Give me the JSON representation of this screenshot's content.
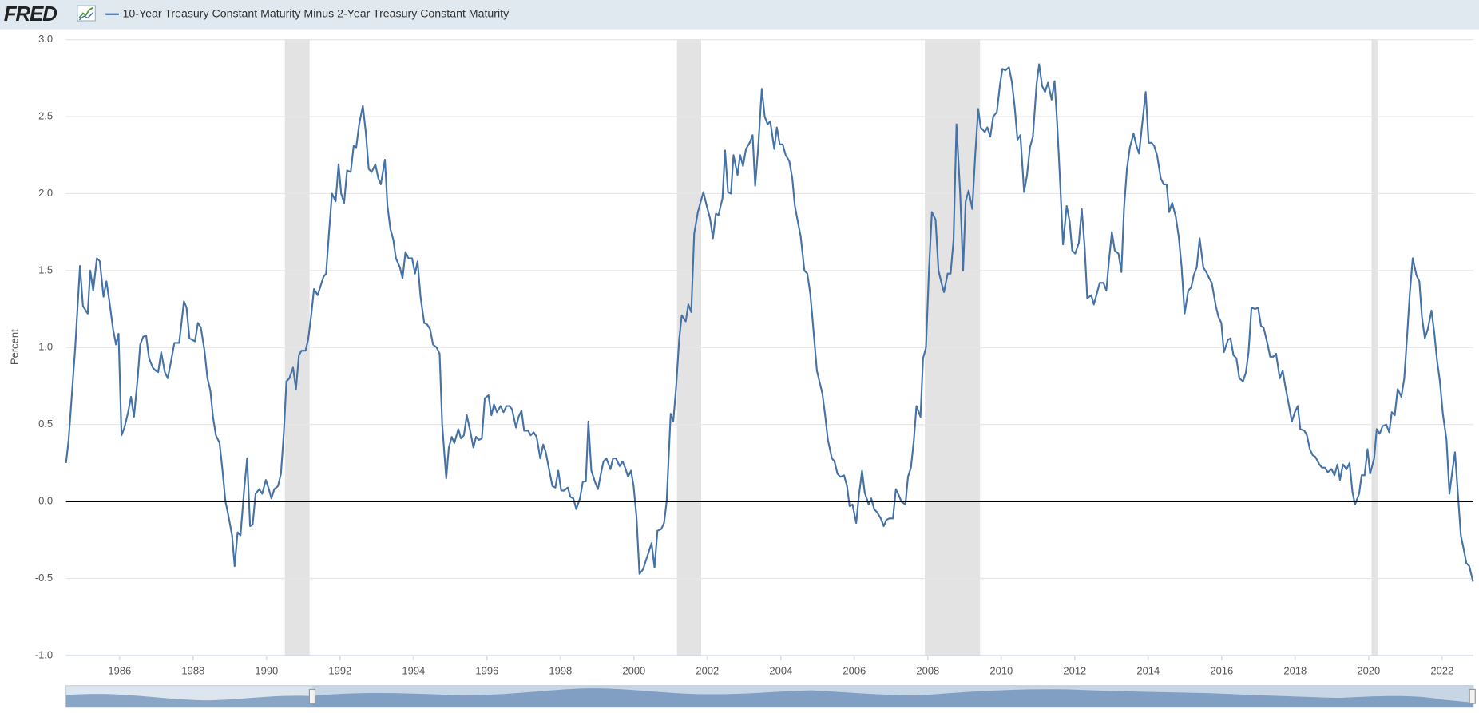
{
  "chart_data": {
    "type": "line",
    "logo": "FRED",
    "ylabel": "Percent",
    "xlim": [
      1984.54,
      2022.85
    ],
    "xticks": [
      1986,
      1988,
      1990,
      1992,
      1994,
      1996,
      1998,
      2000,
      2002,
      2004,
      2006,
      2008,
      2010,
      2012,
      2014,
      2016,
      2018,
      2020,
      2022
    ],
    "ylim": [
      -1,
      3
    ],
    "yticks": [
      {
        "value": -1,
        "label": "-1.0"
      },
      {
        "value": -0.5,
        "label": "-0.5"
      },
      {
        "value": 0,
        "label": "0.0"
      },
      {
        "value": 0.5,
        "label": "0.5"
      },
      {
        "value": 1,
        "label": "1.0"
      },
      {
        "value": 1.5,
        "label": "1.5"
      },
      {
        "value": 2,
        "label": "2.0"
      },
      {
        "value": 2.5,
        "label": "2.5"
      },
      {
        "value": 3,
        "label": "3.0"
      }
    ],
    "grid": true,
    "zero_line": true,
    "recession_color": "#e3e3e3",
    "recessions": [
      [
        1990.5,
        1991.17
      ],
      [
        2001.17,
        2001.83
      ],
      [
        2007.92,
        2009.42
      ],
      [
        2020.08,
        2020.25
      ]
    ],
    "x": [
      1984.54,
      1984.61,
      1984.79,
      1984.92,
      1985.0,
      1985.13,
      1985.2,
      1985.28,
      1985.38,
      1985.46,
      1985.56,
      1985.64,
      1985.72,
      1985.82,
      1985.9,
      1985.97,
      1986.05,
      1986.13,
      1986.23,
      1986.31,
      1986.39,
      1986.49,
      1986.56,
      1986.64,
      1986.72,
      1986.8,
      1986.9,
      1986.98,
      1987.05,
      1987.13,
      1987.23,
      1987.31,
      1987.39,
      1987.49,
      1987.62,
      1987.75,
      1987.82,
      1987.9,
      1987.98,
      1988.05,
      1988.13,
      1988.21,
      1988.31,
      1988.39,
      1988.47,
      1988.54,
      1988.62,
      1988.72,
      1988.8,
      1988.88,
      1988.95,
      1989.06,
      1989.13,
      1989.21,
      1989.29,
      1989.39,
      1989.47,
      1989.55,
      1989.62,
      1989.7,
      1989.8,
      1989.88,
      1989.98,
      1990.06,
      1990.13,
      1990.21,
      1990.31,
      1990.39,
      1990.47,
      1990.54,
      1990.62,
      1990.72,
      1990.8,
      1990.88,
      1990.95,
      1991.06,
      1991.13,
      1991.21,
      1991.29,
      1991.39,
      1991.47,
      1991.55,
      1991.62,
      1991.7,
      1991.78,
      1991.88,
      1991.96,
      1992.03,
      1992.11,
      1992.19,
      1992.29,
      1992.37,
      1992.44,
      1992.52,
      1992.62,
      1992.7,
      1992.78,
      1992.86,
      1992.96,
      1993.04,
      1993.11,
      1993.22,
      1993.29,
      1993.37,
      1993.45,
      1993.52,
      1993.63,
      1993.7,
      1993.78,
      1993.86,
      1993.96,
      1994.04,
      1994.11,
      1994.19,
      1994.29,
      1994.37,
      1994.45,
      1994.53,
      1994.63,
      1994.71,
      1994.78,
      1994.89,
      1994.96,
      1995.04,
      1995.11,
      1995.22,
      1995.29,
      1995.37,
      1995.45,
      1995.55,
      1995.63,
      1995.7,
      1995.78,
      1995.86,
      1995.94,
      1996.04,
      1996.12,
      1996.19,
      1996.27,
      1996.37,
      1996.45,
      1996.53,
      1996.61,
      1996.68,
      1996.79,
      1996.86,
      1996.94,
      1997.01,
      1997.12,
      1997.19,
      1997.27,
      1997.35,
      1997.45,
      1997.53,
      1997.6,
      1997.68,
      1997.78,
      1997.86,
      1997.94,
      1998.02,
      1998.09,
      1998.2,
      1998.27,
      1998.35,
      1998.43,
      1998.53,
      1998.61,
      1998.69,
      1998.76,
      1998.84,
      1998.95,
      1999.02,
      1999.1,
      1999.17,
      1999.25,
      1999.36,
      1999.43,
      1999.51,
      1999.61,
      1999.69,
      1999.76,
      1999.84,
      1999.92,
      1999.99,
      2000.07,
      2000.15,
      2000.25,
      2000.33,
      2000.4,
      2000.48,
      2000.56,
      2000.64,
      2000.74,
      2000.82,
      2000.89,
      2001.0,
      2001.07,
      2001.15,
      2001.23,
      2001.3,
      2001.41,
      2001.48,
      2001.56,
      2001.64,
      2001.74,
      2001.82,
      2001.89,
      2001.97,
      2002.07,
      2002.15,
      2002.23,
      2002.3,
      2002.41,
      2002.48,
      2002.56,
      2002.64,
      2002.71,
      2002.82,
      2002.89,
      2002.97,
      2003.05,
      2003.15,
      2003.23,
      2003.3,
      2003.38,
      2003.48,
      2003.56,
      2003.64,
      2003.71,
      2003.82,
      2003.89,
      2003.97,
      2004.05,
      2004.13,
      2004.23,
      2004.31,
      2004.38,
      2004.46,
      2004.54,
      2004.64,
      2004.72,
      2004.8,
      2004.87,
      2004.98,
      2005.05,
      2005.13,
      2005.21,
      2005.28,
      2005.39,
      2005.46,
      2005.54,
      2005.62,
      2005.72,
      2005.8,
      2005.87,
      2005.95,
      2006.05,
      2006.13,
      2006.21,
      2006.28,
      2006.39,
      2006.46,
      2006.54,
      2006.62,
      2006.72,
      2006.8,
      2006.87,
      2006.95,
      2007.05,
      2007.13,
      2007.21,
      2007.28,
      2007.39,
      2007.46,
      2007.54,
      2007.62,
      2007.69,
      2007.8,
      2007.87,
      2007.95,
      2008.03,
      2008.11,
      2008.21,
      2008.29,
      2008.37,
      2008.44,
      2008.54,
      2008.62,
      2008.7,
      2008.78,
      2008.88,
      2008.96,
      2009.03,
      2009.11,
      2009.21,
      2009.29,
      2009.37,
      2009.44,
      2009.55,
      2009.62,
      2009.7,
      2009.78,
      2009.88,
      2009.96,
      2010.03,
      2010.11,
      2010.21,
      2010.29,
      2010.37,
      2010.44,
      2010.52,
      2010.62,
      2010.7,
      2010.78,
      2010.86,
      2010.96,
      2011.03,
      2011.11,
      2011.19,
      2011.27,
      2011.37,
      2011.45,
      2011.52,
      2011.6,
      2011.68,
      2011.78,
      2011.86,
      2011.93,
      2012.01,
      2012.11,
      2012.19,
      2012.27,
      2012.34,
      2012.45,
      2012.52,
      2012.6,
      2012.68,
      2012.78,
      2012.86,
      2012.93,
      2013.01,
      2013.09,
      2013.19,
      2013.27,
      2013.34,
      2013.42,
      2013.5,
      2013.6,
      2013.68,
      2013.75,
      2013.83,
      2013.93,
      2014.01,
      2014.09,
      2014.16,
      2014.24,
      2014.34,
      2014.42,
      2014.5,
      2014.57,
      2014.65,
      2014.75,
      2014.83,
      2014.91,
      2014.99,
      2015.09,
      2015.17,
      2015.24,
      2015.32,
      2015.4,
      2015.5,
      2015.58,
      2015.66,
      2015.73,
      2015.84,
      2015.91,
      2015.99,
      2016.06,
      2016.17,
      2016.24,
      2016.32,
      2016.4,
      2016.48,
      2016.58,
      2016.66,
      2016.73,
      2016.81,
      2016.91,
      2016.99,
      2017.07,
      2017.14,
      2017.25,
      2017.32,
      2017.4,
      2017.48,
      2017.58,
      2017.66,
      2017.73,
      2017.81,
      2017.91,
      2017.99,
      2018.07,
      2018.14,
      2018.25,
      2018.32,
      2018.4,
      2018.48,
      2018.55,
      2018.66,
      2018.73,
      2018.81,
      2018.89,
      2018.99,
      2019.07,
      2019.15,
      2019.22,
      2019.3,
      2019.4,
      2019.48,
      2019.56,
      2019.63,
      2019.74,
      2019.81,
      2019.89,
      2019.97,
      2020.04,
      2020.15,
      2020.22,
      2020.3,
      2020.38,
      2020.48,
      2020.56,
      2020.63,
      2020.71,
      2020.79,
      2020.89,
      2020.97,
      2021.04,
      2021.12,
      2021.2,
      2021.3,
      2021.38,
      2021.45,
      2021.53,
      2021.61,
      2021.71,
      2021.79,
      2021.86,
      2021.94,
      2022.02,
      2022.12,
      2022.2,
      2022.28,
      2022.35,
      2022.51,
      2022.58,
      2022.66,
      2022.74,
      2022.84
    ],
    "series": [
      {
        "name": "10-Year Treasury Constant Maturity Minus 2-Year Treasury Constant Maturity",
        "color": "#4572a7",
        "values": [
          0.25,
          0.4,
          1.0,
          1.53,
          1.27,
          1.22,
          1.5,
          1.37,
          1.58,
          1.56,
          1.33,
          1.43,
          1.3,
          1.12,
          1.02,
          1.09,
          0.43,
          0.48,
          0.58,
          0.68,
          0.55,
          0.8,
          1.02,
          1.07,
          1.08,
          0.93,
          0.87,
          0.85,
          0.84,
          0.97,
          0.84,
          0.8,
          0.9,
          1.03,
          1.03,
          1.3,
          1.26,
          1.06,
          1.05,
          1.04,
          1.16,
          1.13,
          0.98,
          0.8,
          0.72,
          0.55,
          0.43,
          0.38,
          0.2,
          0.0,
          -0.08,
          -0.22,
          -0.42,
          -0.2,
          -0.22,
          0.08,
          0.28,
          -0.16,
          -0.15,
          0.05,
          0.08,
          0.05,
          0.14,
          0.08,
          0.02,
          0.08,
          0.1,
          0.18,
          0.45,
          0.78,
          0.8,
          0.87,
          0.73,
          0.95,
          0.98,
          0.98,
          1.05,
          1.2,
          1.38,
          1.34,
          1.4,
          1.46,
          1.48,
          1.75,
          2.0,
          1.95,
          2.19,
          2.0,
          1.94,
          2.15,
          2.14,
          2.31,
          2.3,
          2.45,
          2.57,
          2.4,
          2.16,
          2.14,
          2.19,
          2.1,
          2.06,
          2.22,
          1.92,
          1.77,
          1.7,
          1.58,
          1.52,
          1.45,
          1.62,
          1.58,
          1.58,
          1.48,
          1.56,
          1.33,
          1.16,
          1.15,
          1.12,
          1.02,
          1.0,
          0.96,
          0.5,
          0.15,
          0.35,
          0.42,
          0.38,
          0.47,
          0.41,
          0.43,
          0.56,
          0.45,
          0.35,
          0.42,
          0.4,
          0.41,
          0.67,
          0.69,
          0.56,
          0.63,
          0.58,
          0.62,
          0.58,
          0.62,
          0.62,
          0.6,
          0.48,
          0.55,
          0.59,
          0.46,
          0.46,
          0.43,
          0.45,
          0.42,
          0.28,
          0.37,
          0.32,
          0.22,
          0.1,
          0.09,
          0.2,
          0.07,
          0.07,
          0.09,
          0.03,
          0.02,
          -0.05,
          0.02,
          0.13,
          0.13,
          0.52,
          0.2,
          0.12,
          0.08,
          0.18,
          0.26,
          0.28,
          0.21,
          0.28,
          0.28,
          0.23,
          0.26,
          0.22,
          0.16,
          0.2,
          0.1,
          -0.1,
          -0.47,
          -0.44,
          -0.38,
          -0.33,
          -0.27,
          -0.43,
          -0.19,
          -0.18,
          -0.14,
          0.0,
          0.57,
          0.52,
          0.75,
          1.05,
          1.21,
          1.17,
          1.28,
          1.23,
          1.74,
          1.88,
          1.95,
          2.01,
          1.93,
          1.84,
          1.71,
          1.87,
          1.86,
          1.97,
          2.28,
          2.01,
          2.0,
          2.25,
          2.12,
          2.25,
          2.18,
          2.29,
          2.33,
          2.38,
          2.05,
          2.29,
          2.68,
          2.5,
          2.45,
          2.47,
          2.29,
          2.43,
          2.32,
          2.32,
          2.25,
          2.21,
          2.1,
          1.92,
          1.82,
          1.72,
          1.5,
          1.48,
          1.35,
          1.16,
          0.85,
          0.78,
          0.7,
          0.55,
          0.4,
          0.28,
          0.26,
          0.18,
          0.16,
          0.17,
          0.1,
          -0.03,
          -0.02,
          -0.14,
          0.05,
          0.2,
          0.06,
          -0.02,
          0.02,
          -0.05,
          -0.07,
          -0.11,
          -0.16,
          -0.12,
          -0.11,
          -0.11,
          0.08,
          0.04,
          0.0,
          -0.02,
          0.16,
          0.22,
          0.4,
          0.62,
          0.55,
          0.93,
          1.0,
          1.5,
          1.88,
          1.83,
          1.5,
          1.42,
          1.36,
          1.48,
          1.48,
          1.7,
          2.45,
          2.0,
          1.5,
          1.95,
          2.02,
          1.9,
          2.25,
          2.55,
          2.43,
          2.4,
          2.43,
          2.37,
          2.5,
          2.53,
          2.7,
          2.81,
          2.8,
          2.82,
          2.72,
          2.55,
          2.35,
          2.38,
          2.01,
          2.12,
          2.3,
          2.37,
          2.71,
          2.84,
          2.7,
          2.66,
          2.72,
          2.61,
          2.73,
          2.46,
          2.08,
          1.67,
          1.92,
          1.82,
          1.63,
          1.61,
          1.68,
          1.9,
          1.65,
          1.32,
          1.34,
          1.28,
          1.35,
          1.42,
          1.42,
          1.37,
          1.56,
          1.75,
          1.63,
          1.61,
          1.49,
          1.9,
          2.16,
          2.3,
          2.39,
          2.31,
          2.26,
          2.44,
          2.66,
          2.33,
          2.33,
          2.31,
          2.25,
          2.1,
          2.06,
          2.06,
          1.88,
          1.94,
          1.85,
          1.72,
          1.52,
          1.22,
          1.37,
          1.39,
          1.47,
          1.52,
          1.71,
          1.52,
          1.49,
          1.45,
          1.42,
          1.27,
          1.2,
          1.16,
          0.97,
          1.05,
          1.06,
          0.95,
          0.93,
          0.8,
          0.78,
          0.84,
          0.97,
          1.26,
          1.25,
          1.26,
          1.14,
          1.13,
          1.02,
          0.94,
          0.94,
          0.96,
          0.8,
          0.85,
          0.75,
          0.65,
          0.52,
          0.58,
          0.62,
          0.47,
          0.46,
          0.43,
          0.34,
          0.3,
          0.29,
          0.24,
          0.22,
          0.22,
          0.19,
          0.21,
          0.17,
          0.24,
          0.14,
          0.24,
          0.21,
          0.25,
          0.06,
          -0.02,
          0.05,
          0.17,
          0.17,
          0.34,
          0.18,
          0.28,
          0.47,
          0.44,
          0.49,
          0.5,
          0.45,
          0.58,
          0.56,
          0.73,
          0.68,
          0.8,
          1.05,
          1.35,
          1.58,
          1.47,
          1.43,
          1.2,
          1.06,
          1.12,
          1.24,
          1.09,
          0.92,
          0.78,
          0.57,
          0.4,
          0.05,
          0.2,
          0.32,
          -0.22,
          -0.3,
          -0.4,
          -0.42,
          -0.52
        ]
      }
    ]
  }
}
